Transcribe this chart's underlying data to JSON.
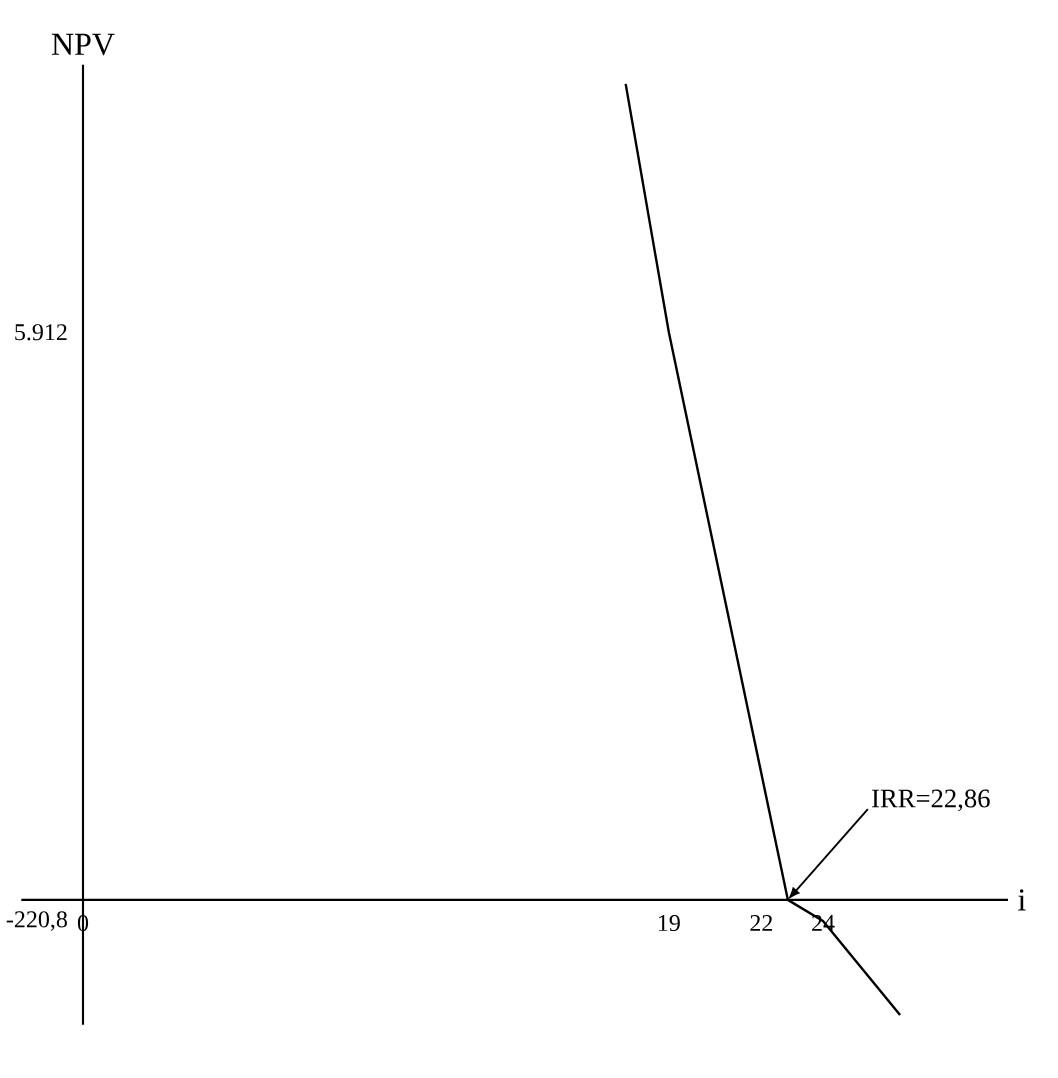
{
  "chart_data": {
    "type": "line",
    "xlabel": "i",
    "ylabel": "NPV",
    "series": [
      {
        "color": "#000000",
        "x": [
          17.6,
          19,
          22.86,
          24,
          26.5
        ],
        "values": [
          8500,
          5912,
          0,
          -220.8,
          -1200
        ]
      }
    ],
    "xlim": [
      -2,
      30
    ],
    "ylim": [
      -1300,
      8700
    ],
    "xticks": [
      0,
      19,
      22,
      24
    ],
    "yticks": [
      {
        "value": 5912,
        "label": "5.912"
      },
      {
        "value": -220.8,
        "label": "-220,8"
      }
    ],
    "annotations": [
      {
        "text": "IRR=22,86",
        "x": 22.86,
        "y": 0
      }
    ],
    "grid": false,
    "marker": "none",
    "line_style": "solid"
  }
}
